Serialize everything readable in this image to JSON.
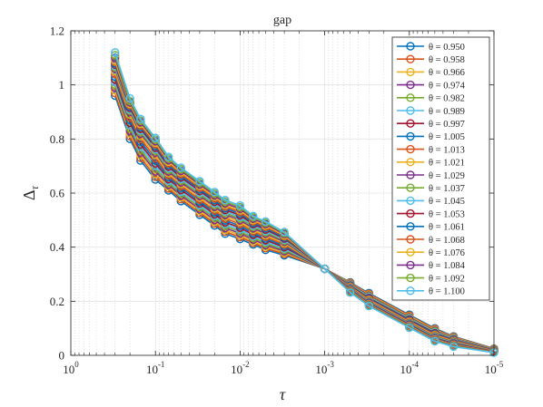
{
  "chart_data": {
    "type": "line",
    "title": "gap",
    "xlabel": "τ",
    "ylabel": "Δ",
    "ylabel_sub": "τ",
    "x_scale": "log",
    "x_reversed": true,
    "xlim": [
      1,
      1e-05
    ],
    "ylim": [
      0,
      1.2
    ],
    "grid": true,
    "minor_grid_x": true,
    "legend_position": "top-right",
    "x_ticks": [
      {
        "value": 1,
        "base": "10",
        "exp": "0"
      },
      {
        "value": 0.1,
        "base": "10",
        "exp": "-1"
      },
      {
        "value": 0.01,
        "base": "10",
        "exp": "-2"
      },
      {
        "value": 0.001,
        "base": "10",
        "exp": "-3"
      },
      {
        "value": 0.0001,
        "base": "10",
        "exp": "-4"
      },
      {
        "value": 1e-05,
        "base": "10",
        "exp": "-5"
      }
    ],
    "y_ticks": [
      {
        "value": 0,
        "label": "0"
      },
      {
        "value": 0.2,
        "label": "0.2"
      },
      {
        "value": 0.4,
        "label": "0.4"
      },
      {
        "value": 0.6,
        "label": "0.6"
      },
      {
        "value": 0.8,
        "label": "0.8"
      },
      {
        "value": 1,
        "label": "1"
      },
      {
        "value": 1.2,
        "label": "1.2"
      }
    ],
    "x": [
      0.3,
      0.2,
      0.15,
      0.1,
      0.07,
      0.05,
      0.03,
      0.02,
      0.015,
      0.01,
      0.007,
      0.005,
      0.003,
      0.001,
      0.0005,
      0.0003,
      0.0001,
      5e-05,
      3e-05,
      1e-05
    ],
    "series": [
      {
        "name": "θ = 0.950",
        "color": "#0072BD",
        "values": [
          0.96,
          0.8,
          0.72,
          0.65,
          0.61,
          0.57,
          0.52,
          0.48,
          0.45,
          0.43,
          0.41,
          0.39,
          0.37,
          0.32,
          0.27,
          0.23,
          0.15,
          0.1,
          0.07,
          0.025
        ]
      },
      {
        "name": "θ = 0.958",
        "color": "#D95319",
        "values": [
          0.97,
          0.81,
          0.73,
          0.66,
          0.617,
          0.577,
          0.527,
          0.487,
          0.457,
          0.437,
          0.416,
          0.396,
          0.375,
          0.32,
          0.268,
          0.227,
          0.147,
          0.097,
          0.068,
          0.024
        ]
      },
      {
        "name": "θ = 0.966",
        "color": "#EDB120",
        "values": [
          0.98,
          0.82,
          0.74,
          0.67,
          0.624,
          0.584,
          0.534,
          0.494,
          0.464,
          0.444,
          0.422,
          0.402,
          0.38,
          0.32,
          0.266,
          0.224,
          0.144,
          0.094,
          0.066,
          0.023
        ]
      },
      {
        "name": "θ = 0.974",
        "color": "#7E2F8E",
        "values": [
          0.99,
          0.83,
          0.75,
          0.68,
          0.631,
          0.591,
          0.541,
          0.501,
          0.471,
          0.451,
          0.428,
          0.408,
          0.385,
          0.32,
          0.264,
          0.221,
          0.141,
          0.091,
          0.064,
          0.022
        ]
      },
      {
        "name": "θ = 0.982",
        "color": "#77AC30",
        "values": [
          1.0,
          0.84,
          0.76,
          0.69,
          0.638,
          0.598,
          0.548,
          0.508,
          0.478,
          0.458,
          0.434,
          0.414,
          0.39,
          0.32,
          0.262,
          0.218,
          0.138,
          0.088,
          0.062,
          0.021
        ]
      },
      {
        "name": "θ = 0.989",
        "color": "#4DBEEE",
        "values": [
          1.01,
          0.85,
          0.77,
          0.7,
          0.645,
          0.605,
          0.555,
          0.515,
          0.485,
          0.465,
          0.44,
          0.42,
          0.395,
          0.32,
          0.26,
          0.215,
          0.135,
          0.085,
          0.06,
          0.02
        ]
      },
      {
        "name": "θ = 0.997",
        "color": "#A2142F",
        "values": [
          1.02,
          0.86,
          0.78,
          0.71,
          0.652,
          0.612,
          0.562,
          0.522,
          0.492,
          0.472,
          0.446,
          0.426,
          0.4,
          0.32,
          0.258,
          0.212,
          0.132,
          0.082,
          0.058,
          0.019
        ]
      },
      {
        "name": "θ = 1.005",
        "color": "#0072BD",
        "values": [
          1.03,
          0.87,
          0.79,
          0.72,
          0.659,
          0.619,
          0.569,
          0.529,
          0.499,
          0.479,
          0.452,
          0.432,
          0.405,
          0.32,
          0.256,
          0.209,
          0.129,
          0.079,
          0.056,
          0.018
        ]
      },
      {
        "name": "θ = 1.013",
        "color": "#D95319",
        "values": [
          1.04,
          0.88,
          0.8,
          0.73,
          0.666,
          0.626,
          0.576,
          0.536,
          0.506,
          0.486,
          0.458,
          0.438,
          0.41,
          0.32,
          0.254,
          0.206,
          0.126,
          0.076,
          0.054,
          0.017
        ]
      },
      {
        "name": "θ = 1.021",
        "color": "#EDB120",
        "values": [
          1.05,
          0.89,
          0.81,
          0.74,
          0.673,
          0.633,
          0.583,
          0.543,
          0.513,
          0.493,
          0.464,
          0.444,
          0.415,
          0.32,
          0.252,
          0.203,
          0.123,
          0.073,
          0.052,
          0.016
        ]
      },
      {
        "name": "θ = 1.029",
        "color": "#7E2F8E",
        "values": [
          1.06,
          0.9,
          0.82,
          0.75,
          0.68,
          0.64,
          0.59,
          0.55,
          0.52,
          0.5,
          0.47,
          0.45,
          0.42,
          0.32,
          0.25,
          0.2,
          0.12,
          0.07,
          0.05,
          0.015
        ]
      },
      {
        "name": "θ = 1.037",
        "color": "#77AC30",
        "values": [
          1.065,
          0.905,
          0.826,
          0.756,
          0.686,
          0.646,
          0.596,
          0.556,
          0.526,
          0.506,
          0.475,
          0.455,
          0.424,
          0.32,
          0.248,
          0.198,
          0.118,
          0.068,
          0.048,
          0.015
        ]
      },
      {
        "name": "θ = 1.045",
        "color": "#4DBEEE",
        "values": [
          1.07,
          0.91,
          0.832,
          0.762,
          0.692,
          0.652,
          0.602,
          0.562,
          0.532,
          0.512,
          0.48,
          0.46,
          0.428,
          0.32,
          0.246,
          0.196,
          0.116,
          0.066,
          0.046,
          0.014
        ]
      },
      {
        "name": "θ = 1.053",
        "color": "#A2142F",
        "values": [
          1.075,
          0.915,
          0.838,
          0.768,
          0.698,
          0.658,
          0.608,
          0.568,
          0.538,
          0.518,
          0.485,
          0.465,
          0.432,
          0.32,
          0.244,
          0.194,
          0.114,
          0.064,
          0.044,
          0.014
        ]
      },
      {
        "name": "θ = 1.061",
        "color": "#0072BD",
        "values": [
          1.08,
          0.92,
          0.844,
          0.774,
          0.704,
          0.664,
          0.614,
          0.574,
          0.544,
          0.524,
          0.49,
          0.47,
          0.436,
          0.32,
          0.242,
          0.192,
          0.112,
          0.062,
          0.042,
          0.013
        ]
      },
      {
        "name": "θ = 1.068",
        "color": "#D95319",
        "values": [
          1.085,
          0.925,
          0.85,
          0.78,
          0.71,
          0.67,
          0.62,
          0.58,
          0.55,
          0.53,
          0.495,
          0.475,
          0.44,
          0.32,
          0.24,
          0.19,
          0.11,
          0.06,
          0.04,
          0.013
        ]
      },
      {
        "name": "θ = 1.076",
        "color": "#EDB120",
        "values": [
          1.09,
          0.93,
          0.856,
          0.786,
          0.716,
          0.676,
          0.626,
          0.586,
          0.556,
          0.536,
          0.5,
          0.48,
          0.444,
          0.32,
          0.238,
          0.188,
          0.108,
          0.058,
          0.038,
          0.012
        ]
      },
      {
        "name": "θ = 1.084",
        "color": "#7E2F8E",
        "values": [
          1.1,
          0.935,
          0.862,
          0.792,
          0.722,
          0.682,
          0.632,
          0.592,
          0.562,
          0.542,
          0.505,
          0.485,
          0.448,
          0.32,
          0.236,
          0.186,
          0.106,
          0.056,
          0.036,
          0.012
        ]
      },
      {
        "name": "θ = 1.092",
        "color": "#77AC30",
        "values": [
          1.11,
          0.94,
          0.868,
          0.798,
          0.728,
          0.688,
          0.638,
          0.598,
          0.568,
          0.548,
          0.51,
          0.49,
          0.452,
          0.32,
          0.234,
          0.184,
          0.104,
          0.054,
          0.034,
          0.011
        ]
      },
      {
        "name": "θ = 1.100",
        "color": "#4DBEEE",
        "values": [
          1.12,
          0.95,
          0.874,
          0.804,
          0.734,
          0.694,
          0.644,
          0.604,
          0.574,
          0.554,
          0.515,
          0.495,
          0.456,
          0.32,
          0.232,
          0.182,
          0.102,
          0.052,
          0.032,
          0.01
        ]
      }
    ]
  }
}
